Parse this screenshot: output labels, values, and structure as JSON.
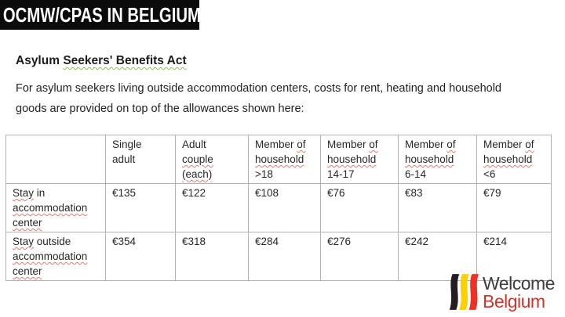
{
  "banner": {
    "title": "OCMW/CPAS IN BELGIUM"
  },
  "heading": {
    "lines": [
      [
        {
          "t": "Asylum ",
          "m": "n"
        },
        {
          "t": "Seekers' Benefits Act",
          "m": "g"
        }
      ]
    ]
  },
  "intro": {
    "text": "For asylum seekers living outside accommodation centers, costs for rent, heating and household\ngoods are provided on top of the allowances shown here:"
  },
  "table": {
    "headers": [
      {
        "lines": []
      },
      {
        "lines": [
          [
            {
              "t": "Single",
              "m": "n"
            }
          ],
          [
            {
              "t": "adult",
              "m": "n"
            }
          ]
        ]
      },
      {
        "lines": [
          [
            {
              "t": "Adult",
              "m": "n"
            }
          ],
          [
            {
              "t": "couple",
              "m": "r"
            }
          ],
          [
            {
              "t": "(each)",
              "m": "r"
            }
          ]
        ]
      },
      {
        "lines": [
          [
            {
              "t": "Member ",
              "m": "n"
            },
            {
              "t": "of",
              "m": "r"
            }
          ],
          [
            {
              "t": "household",
              "m": "r"
            }
          ],
          [
            {
              "t": ">18",
              "m": "n"
            }
          ]
        ]
      },
      {
        "lines": [
          [
            {
              "t": "Member ",
              "m": "n"
            },
            {
              "t": "of",
              "m": "r"
            }
          ],
          [
            {
              "t": "household",
              "m": "r"
            }
          ],
          [
            {
              "t": "14-17",
              "m": "n"
            }
          ]
        ]
      },
      {
        "lines": [
          [
            {
              "t": "Member ",
              "m": "n"
            },
            {
              "t": "of",
              "m": "r"
            }
          ],
          [
            {
              "t": "household",
              "m": "r"
            }
          ],
          [
            {
              "t": "6-14",
              "m": "n"
            }
          ]
        ]
      },
      {
        "lines": [
          [
            {
              "t": "Member ",
              "m": "n"
            },
            {
              "t": "of",
              "m": "r"
            }
          ],
          [
            {
              "t": "household",
              "m": "r"
            }
          ],
          [
            {
              "t": "<6",
              "m": "n"
            }
          ]
        ]
      }
    ],
    "rows": [
      {
        "label": {
          "lines": [
            [
              {
                "t": "Stay",
                "m": "r"
              },
              {
                "t": " in",
                "m": "n"
              }
            ],
            [
              {
                "t": "accommodation",
                "m": "r"
              }
            ],
            [
              {
                "t": "center",
                "m": "r"
              }
            ]
          ]
        },
        "values": [
          "€135",
          "€122",
          "€108",
          "€76",
          "€83",
          "€79"
        ]
      },
      {
        "label": {
          "lines": [
            [
              {
                "t": "Stay",
                "m": "r"
              },
              {
                "t": " outside",
                "m": "n"
              }
            ],
            [
              {
                "t": "accommodation",
                "m": "r"
              }
            ],
            [
              {
                "t": "center",
                "m": "r"
              }
            ]
          ]
        },
        "values": [
          "€354",
          "€318",
          "€284",
          "€276",
          "€242",
          "€214"
        ]
      }
    ]
  },
  "logo": {
    "line1": "Welcome",
    "line2": "Belgium",
    "colors": {
      "stripe_black": "#231f20",
      "stripe_yellow": "#fdd000",
      "stripe_red": "#ee3124",
      "welcome_text": "#3d3d3f",
      "belgium_text": "#d2342a"
    }
  },
  "squiggle_colors": {
    "red": "#d97c74",
    "green": "#8fbe57"
  }
}
